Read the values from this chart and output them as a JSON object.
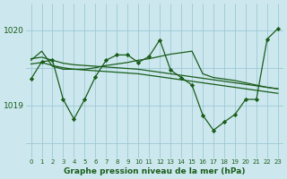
{
  "title": "Graphe pression niveau de la mer (hPa)",
  "bg_color": "#cce8ee",
  "grid_color": "#9dc8d4",
  "line_color": "#1a5c1a",
  "xlim": [
    -0.5,
    23.5
  ],
  "ylim": [
    1018.3,
    1020.35
  ],
  "yticks": [
    1019,
    1020
  ],
  "x_ticks": [
    0,
    1,
    2,
    3,
    4,
    5,
    6,
    7,
    8,
    9,
    10,
    11,
    12,
    13,
    14,
    15,
    16,
    17,
    18,
    19,
    20,
    21,
    22,
    23
  ],
  "series1_x": [
    0,
    1,
    2,
    3,
    4,
    5,
    6,
    7,
    8,
    9,
    10,
    11,
    12,
    13,
    14,
    15,
    16,
    17,
    18,
    19,
    20,
    21,
    22,
    23
  ],
  "series1_y": [
    1019.35,
    1019.58,
    1019.6,
    1019.08,
    1018.82,
    1019.08,
    1019.38,
    1019.6,
    1019.67,
    1019.67,
    1019.57,
    1019.65,
    1019.87,
    1019.47,
    1019.37,
    1019.27,
    1018.87,
    1018.67,
    1018.78,
    1018.88,
    1019.08,
    1019.08,
    1019.88,
    1020.02
  ],
  "series2_x": [
    0,
    1,
    2,
    3,
    4,
    5,
    6,
    7,
    8,
    9,
    10,
    11,
    12,
    13,
    14,
    15,
    16,
    17,
    18,
    19,
    20,
    21,
    22,
    23
  ],
  "series2_y": [
    1019.62,
    1019.64,
    1019.6,
    1019.56,
    1019.54,
    1019.53,
    1019.52,
    1019.51,
    1019.5,
    1019.49,
    1019.48,
    1019.46,
    1019.44,
    1019.42,
    1019.4,
    1019.38,
    1019.36,
    1019.34,
    1019.32,
    1019.3,
    1019.28,
    1019.26,
    1019.24,
    1019.22
  ],
  "series3_x": [
    0,
    1,
    2,
    3,
    4,
    5,
    6,
    7,
    8,
    9,
    10,
    11,
    12,
    13,
    14,
    15,
    16,
    17,
    18,
    19,
    20,
    21,
    22,
    23
  ],
  "series3_y": [
    1019.55,
    1019.57,
    1019.53,
    1019.5,
    1019.48,
    1019.47,
    1019.46,
    1019.45,
    1019.44,
    1019.43,
    1019.42,
    1019.4,
    1019.38,
    1019.36,
    1019.34,
    1019.32,
    1019.3,
    1019.28,
    1019.26,
    1019.24,
    1019.22,
    1019.2,
    1019.18,
    1019.16
  ],
  "series4_x": [
    0,
    1,
    2,
    3,
    4,
    5,
    6,
    7,
    8,
    9,
    10,
    11,
    12,
    13,
    14,
    15,
    16,
    17,
    18,
    19,
    20,
    21,
    22,
    23
  ],
  "series4_y": [
    1019.6,
    1019.72,
    1019.52,
    1019.48,
    1019.48,
    1019.48,
    1019.5,
    1019.53,
    1019.55,
    1019.57,
    1019.6,
    1019.62,
    1019.65,
    1019.68,
    1019.7,
    1019.72,
    1019.42,
    1019.37,
    1019.35,
    1019.33,
    1019.3,
    1019.27,
    1019.24,
    1019.22
  ]
}
